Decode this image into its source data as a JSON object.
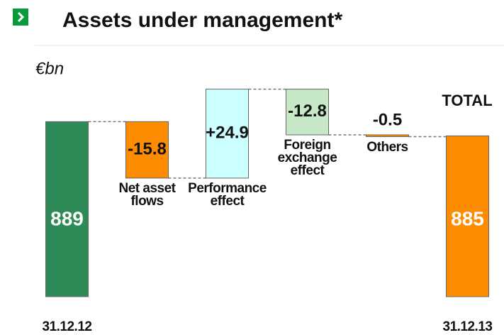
{
  "chart_data": {
    "type": "waterfall",
    "title": "Assets under management*",
    "unit_label": "€bn",
    "categories": [
      "31.12.12",
      "Net asset\nflows",
      "Performance\neffect",
      "Foreign\nexchange\neffect",
      "Others",
      "31.12.13"
    ],
    "values": [
      889,
      -15.8,
      24.9,
      -12.8,
      -0.5,
      885
    ],
    "value_labels": [
      "889",
      "-15.8",
      "+24.9",
      "-12.8",
      "-0.5",
      "885"
    ],
    "measure": [
      "absolute",
      "relative",
      "relative",
      "relative",
      "relative",
      "absolute"
    ],
    "colors": [
      "#2e8b57",
      "#ff8c00",
      "#ccffff",
      "#c6e8c6",
      "#ff8c00",
      "#ff8c00"
    ],
    "annotation": "TOTAL",
    "ylim": [
      840,
      900
    ]
  }
}
